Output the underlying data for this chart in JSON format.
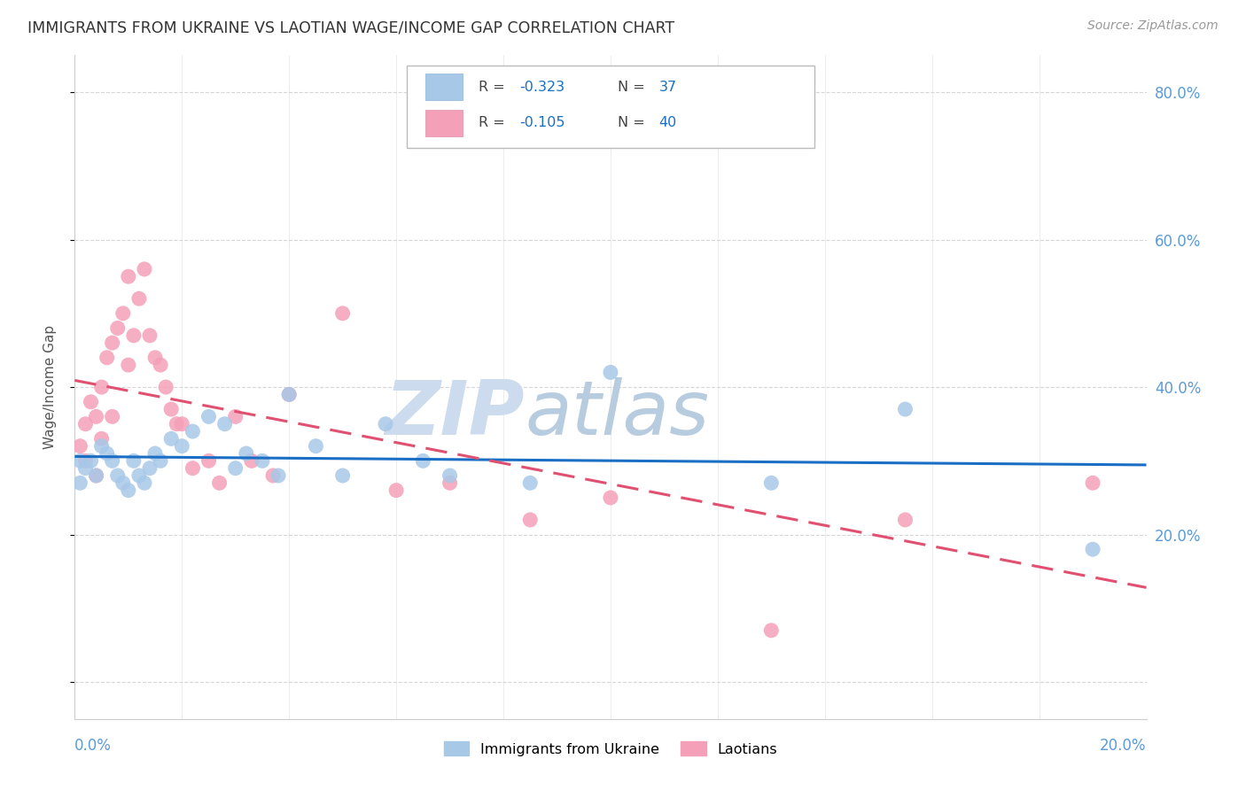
{
  "title": "IMMIGRANTS FROM UKRAINE VS LAOTIAN WAGE/INCOME GAP CORRELATION CHART",
  "source": "Source: ZipAtlas.com",
  "ylabel": "Wage/Income Gap",
  "legend_ukraine": "Immigrants from Ukraine",
  "legend_laotians": "Laotians",
  "color_ukraine": "#a8c8e8",
  "color_laotian": "#f4a0b8",
  "line_ukraine": "#1a6fc4",
  "line_laotian": "#e05070",
  "watermark_zip_color": "#c8d8ee",
  "watermark_atlas_color": "#b0c8e8",
  "right_axis_color": "#5b9bd5",
  "background": "#ffffff",
  "grid_color": "#cccccc",
  "xlim": [
    0.0,
    0.2
  ],
  "ylim": [
    -0.05,
    0.85
  ],
  "yticks": [
    0.0,
    0.2,
    0.4,
    0.6,
    0.8
  ],
  "ytick_labels": [
    "",
    "20.0%",
    "40.0%",
    "60.0%",
    "80.0%"
  ],
  "ukraine_x": [
    0.001,
    0.001,
    0.002,
    0.003,
    0.004,
    0.005,
    0.006,
    0.007,
    0.008,
    0.009,
    0.01,
    0.011,
    0.012,
    0.013,
    0.014,
    0.015,
    0.016,
    0.018,
    0.02,
    0.022,
    0.025,
    0.028,
    0.03,
    0.032,
    0.035,
    0.038,
    0.04,
    0.045,
    0.05,
    0.058,
    0.065,
    0.07,
    0.085,
    0.1,
    0.13,
    0.155,
    0.19
  ],
  "ukraine_y": [
    0.3,
    0.27,
    0.29,
    0.3,
    0.28,
    0.32,
    0.31,
    0.3,
    0.28,
    0.27,
    0.26,
    0.3,
    0.28,
    0.27,
    0.29,
    0.31,
    0.3,
    0.33,
    0.32,
    0.34,
    0.36,
    0.35,
    0.29,
    0.31,
    0.3,
    0.28,
    0.39,
    0.32,
    0.28,
    0.35,
    0.3,
    0.28,
    0.27,
    0.42,
    0.27,
    0.37,
    0.18
  ],
  "laotian_x": [
    0.001,
    0.002,
    0.002,
    0.003,
    0.004,
    0.004,
    0.005,
    0.005,
    0.006,
    0.007,
    0.007,
    0.008,
    0.009,
    0.01,
    0.01,
    0.011,
    0.012,
    0.013,
    0.014,
    0.015,
    0.016,
    0.017,
    0.018,
    0.019,
    0.02,
    0.022,
    0.025,
    0.027,
    0.03,
    0.033,
    0.037,
    0.04,
    0.05,
    0.06,
    0.07,
    0.085,
    0.1,
    0.13,
    0.155,
    0.19
  ],
  "laotian_y": [
    0.32,
    0.35,
    0.3,
    0.38,
    0.36,
    0.28,
    0.4,
    0.33,
    0.44,
    0.46,
    0.36,
    0.48,
    0.5,
    0.55,
    0.43,
    0.47,
    0.52,
    0.56,
    0.47,
    0.44,
    0.43,
    0.4,
    0.37,
    0.35,
    0.35,
    0.29,
    0.3,
    0.27,
    0.36,
    0.3,
    0.28,
    0.39,
    0.5,
    0.26,
    0.27,
    0.22,
    0.25,
    0.07,
    0.22,
    0.27
  ]
}
